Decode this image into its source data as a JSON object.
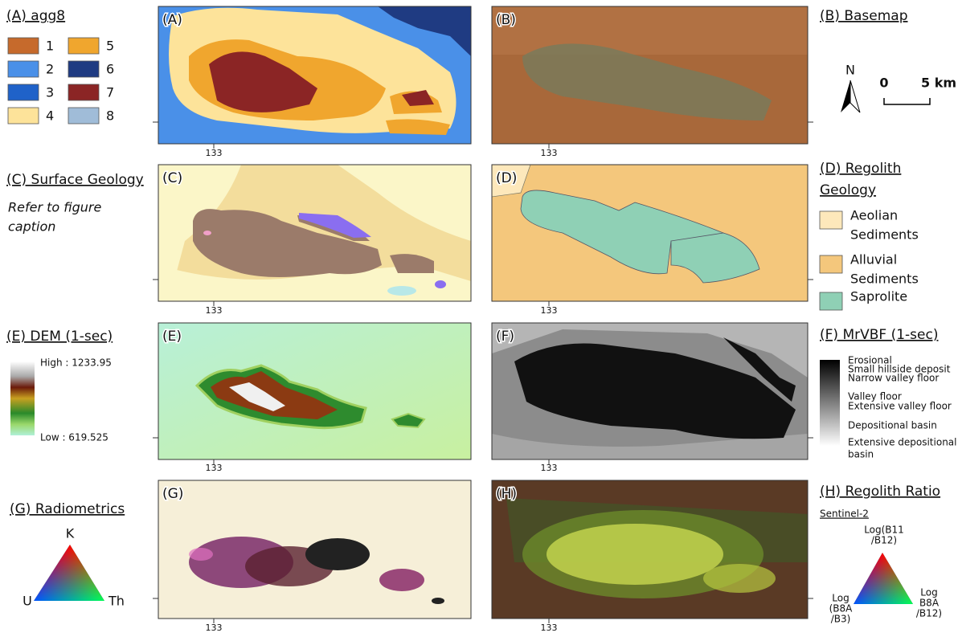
{
  "panels": [
    {
      "label": "(A)",
      "x_tick": "133"
    },
    {
      "label": "(B)",
      "x_tick": "133"
    },
    {
      "label": "(C)",
      "x_tick": "133"
    },
    {
      "label": "(D)",
      "x_tick": "133"
    },
    {
      "label": "(E)",
      "x_tick": "133"
    },
    {
      "label": "(F)",
      "x_tick": "133"
    },
    {
      "label": "(G)",
      "x_tick": "133"
    },
    {
      "label": "(H)",
      "x_tick": "133"
    }
  ],
  "agg8": {
    "title": "(A) agg8",
    "classes": [
      {
        "label": "1",
        "color": "#c66a2c"
      },
      {
        "label": "2",
        "color": "#4a90e8"
      },
      {
        "label": "3",
        "color": "#1f62c9"
      },
      {
        "label": "4",
        "color": "#fde39a"
      },
      {
        "label": "5",
        "color": "#f0a62e"
      },
      {
        "label": "6",
        "color": "#1f3b82"
      },
      {
        "label": "7",
        "color": "#8b2525"
      },
      {
        "label": "8",
        "color": "#a0bcd8"
      }
    ]
  },
  "basemap": {
    "title": "(B) Basemap",
    "north": "N",
    "scale_labels": [
      "0",
      "5 km"
    ]
  },
  "surface_geology": {
    "title": "(C) Surface Geology",
    "note": [
      "Refer to figure",
      "caption"
    ]
  },
  "regolith_geology": {
    "title": [
      "(D) Regolith",
      "Geology"
    ],
    "classes": [
      {
        "label": [
          "Aeolian",
          "Sediments"
        ],
        "color": "#fde8bb"
      },
      {
        "label": [
          "Alluvial",
          "Sediments"
        ],
        "color": "#f4c77c"
      },
      {
        "label": [
          "Saprolite"
        ],
        "color": "#8fd0b5"
      }
    ]
  },
  "dem": {
    "title": "(E) DEM (1-sec)",
    "high": "High : 1233.95",
    "low": "Low : 619.525"
  },
  "mrvbf": {
    "title": "(F)  MrVBF (1-sec)",
    "classes": [
      [
        "Erosional"
      ],
      [
        "Small hillside deposit"
      ],
      [
        "Narrow valley floor"
      ],
      [
        "Valley floor"
      ],
      [
        "Extensive valley floor"
      ],
      [
        "Depositional basin"
      ],
      [
        "Extensive depositional",
        "basin"
      ]
    ]
  },
  "radiometrics": {
    "title": "(G) Radiometrics",
    "vertices": [
      "K",
      "U",
      "Th"
    ]
  },
  "regolith_ratio": {
    "title": "(H) Regolith Ratio",
    "subtitle": "Sentinel-2",
    "vertices": [
      [
        "Log(B11",
        "/B12)"
      ],
      [
        "Log",
        "(B8A",
        "/B3)"
      ],
      [
        "Log",
        "B8A",
        "/B12)"
      ]
    ]
  }
}
